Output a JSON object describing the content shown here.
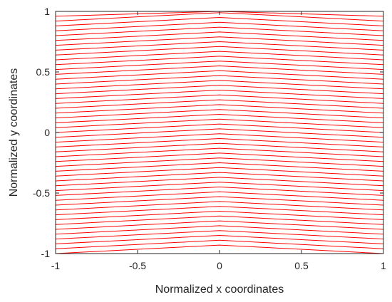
{
  "chart_data": {
    "type": "line",
    "title": "",
    "xlabel": "Normalized x coordinates",
    "ylabel": "Normalized y coordinates",
    "xlim": [
      -1,
      1
    ],
    "ylim": [
      -1,
      1
    ],
    "xticks": [
      -1,
      -0.5,
      0,
      0.5,
      1
    ],
    "yticks": [
      -1,
      -0.5,
      0,
      0.5,
      1
    ],
    "xtick_labels": [
      "-1",
      "-0.5",
      "0",
      "0.5",
      "1"
    ],
    "ytick_labels": [
      "-1",
      "-0.5",
      "0",
      "0.5",
      "1"
    ],
    "grid": false,
    "legend": "none",
    "line_color": "#ff0000",
    "series": [
      {
        "x": [
          -1,
          -0.5,
          0,
          0.5,
          1
        ],
        "y": [
          -1,
          -0.965,
          -0.93,
          -0.965,
          -1
        ]
      },
      {
        "x": [
          -1,
          -0.5,
          0,
          0.5,
          1
        ],
        "y": [
          -0.96,
          -0.925,
          -0.89,
          -0.925,
          -0.96
        ]
      },
      {
        "x": [
          -1,
          -0.5,
          0,
          0.5,
          1
        ],
        "y": [
          -0.92,
          -0.885,
          -0.85,
          -0.885,
          -0.92
        ]
      },
      {
        "x": [
          -1,
          -0.5,
          0,
          0.5,
          1
        ],
        "y": [
          -0.88,
          -0.845,
          -0.81,
          -0.845,
          -0.88
        ]
      },
      {
        "x": [
          -1,
          -0.5,
          0,
          0.5,
          1
        ],
        "y": [
          -0.84,
          -0.805,
          -0.77,
          -0.805,
          -0.84
        ]
      },
      {
        "x": [
          -1,
          -0.5,
          0,
          0.5,
          1
        ],
        "y": [
          -0.8,
          -0.765,
          -0.73,
          -0.765,
          -0.8
        ]
      },
      {
        "x": [
          -1,
          -0.5,
          0,
          0.5,
          1
        ],
        "y": [
          -0.76,
          -0.725,
          -0.69,
          -0.725,
          -0.76
        ]
      },
      {
        "x": [
          -1,
          -0.5,
          0,
          0.5,
          1
        ],
        "y": [
          -0.72,
          -0.685,
          -0.65,
          -0.685,
          -0.72
        ]
      },
      {
        "x": [
          -1,
          -0.5,
          0,
          0.5,
          1
        ],
        "y": [
          -0.68,
          -0.645,
          -0.61,
          -0.645,
          -0.68
        ]
      },
      {
        "x": [
          -1,
          -0.5,
          0,
          0.5,
          1
        ],
        "y": [
          -0.64,
          -0.605,
          -0.57,
          -0.605,
          -0.64
        ]
      },
      {
        "x": [
          -1,
          -0.5,
          0,
          0.5,
          1
        ],
        "y": [
          -0.6,
          -0.565,
          -0.53,
          -0.565,
          -0.6
        ]
      },
      {
        "x": [
          -1,
          -0.5,
          0,
          0.5,
          1
        ],
        "y": [
          -0.56,
          -0.525,
          -0.49,
          -0.525,
          -0.56
        ]
      },
      {
        "x": [
          -1,
          -0.5,
          0,
          0.5,
          1
        ],
        "y": [
          -0.52,
          -0.485,
          -0.45,
          -0.485,
          -0.52
        ]
      },
      {
        "x": [
          -1,
          -0.5,
          0,
          0.5,
          1
        ],
        "y": [
          -0.48,
          -0.445,
          -0.41,
          -0.445,
          -0.48
        ]
      },
      {
        "x": [
          -1,
          -0.5,
          0,
          0.5,
          1
        ],
        "y": [
          -0.44,
          -0.405,
          -0.37,
          -0.405,
          -0.44
        ]
      },
      {
        "x": [
          -1,
          -0.5,
          0,
          0.5,
          1
        ],
        "y": [
          -0.4,
          -0.365,
          -0.33,
          -0.365,
          -0.4
        ]
      },
      {
        "x": [
          -1,
          -0.5,
          0,
          0.5,
          1
        ],
        "y": [
          -0.36,
          -0.325,
          -0.29,
          -0.325,
          -0.36
        ]
      },
      {
        "x": [
          -1,
          -0.5,
          0,
          0.5,
          1
        ],
        "y": [
          -0.32,
          -0.285,
          -0.25,
          -0.285,
          -0.32
        ]
      },
      {
        "x": [
          -1,
          -0.5,
          0,
          0.5,
          1
        ],
        "y": [
          -0.28,
          -0.245,
          -0.21,
          -0.245,
          -0.28
        ]
      },
      {
        "x": [
          -1,
          -0.5,
          0,
          0.5,
          1
        ],
        "y": [
          -0.24,
          -0.205,
          -0.17,
          -0.205,
          -0.24
        ]
      },
      {
        "x": [
          -1,
          -0.5,
          0,
          0.5,
          1
        ],
        "y": [
          -0.2,
          -0.165,
          -0.13,
          -0.165,
          -0.2
        ]
      },
      {
        "x": [
          -1,
          -0.5,
          0,
          0.5,
          1
        ],
        "y": [
          -0.16,
          -0.125,
          -0.09,
          -0.125,
          -0.16
        ]
      },
      {
        "x": [
          -1,
          -0.5,
          0,
          0.5,
          1
        ],
        "y": [
          -0.12,
          -0.085,
          -0.05,
          -0.085,
          -0.12
        ]
      },
      {
        "x": [
          -1,
          -0.5,
          0,
          0.5,
          1
        ],
        "y": [
          -0.08,
          -0.045,
          -0.01,
          -0.045,
          -0.08
        ]
      },
      {
        "x": [
          -1,
          -0.5,
          0,
          0.5,
          1
        ],
        "y": [
          -0.04,
          -0.005,
          0.03,
          -0.005,
          -0.04
        ]
      },
      {
        "x": [
          -1,
          -0.5,
          0,
          0.5,
          1
        ],
        "y": [
          0,
          0.035,
          0.07,
          0.035,
          0
        ]
      },
      {
        "x": [
          -1,
          -0.5,
          0,
          0.5,
          1
        ],
        "y": [
          0.04,
          0.075,
          0.11,
          0.075,
          0.04
        ]
      },
      {
        "x": [
          -1,
          -0.5,
          0,
          0.5,
          1
        ],
        "y": [
          0.08,
          0.115,
          0.15,
          0.115,
          0.08
        ]
      },
      {
        "x": [
          -1,
          -0.5,
          0,
          0.5,
          1
        ],
        "y": [
          0.12,
          0.155,
          0.19,
          0.155,
          0.12
        ]
      },
      {
        "x": [
          -1,
          -0.5,
          0,
          0.5,
          1
        ],
        "y": [
          0.16,
          0.195,
          0.23,
          0.195,
          0.16
        ]
      },
      {
        "x": [
          -1,
          -0.5,
          0,
          0.5,
          1
        ],
        "y": [
          0.2,
          0.235,
          0.27,
          0.235,
          0.2
        ]
      },
      {
        "x": [
          -1,
          -0.5,
          0,
          0.5,
          1
        ],
        "y": [
          0.24,
          0.275,
          0.31,
          0.275,
          0.24
        ]
      },
      {
        "x": [
          -1,
          -0.5,
          0,
          0.5,
          1
        ],
        "y": [
          0.28,
          0.315,
          0.35,
          0.315,
          0.28
        ]
      },
      {
        "x": [
          -1,
          -0.5,
          0,
          0.5,
          1
        ],
        "y": [
          0.32,
          0.355,
          0.39,
          0.355,
          0.32
        ]
      },
      {
        "x": [
          -1,
          -0.5,
          0,
          0.5,
          1
        ],
        "y": [
          0.36,
          0.395,
          0.43,
          0.395,
          0.36
        ]
      },
      {
        "x": [
          -1,
          -0.5,
          0,
          0.5,
          1
        ],
        "y": [
          0.4,
          0.435,
          0.47,
          0.435,
          0.4
        ]
      },
      {
        "x": [
          -1,
          -0.5,
          0,
          0.5,
          1
        ],
        "y": [
          0.44,
          0.475,
          0.51,
          0.475,
          0.44
        ]
      },
      {
        "x": [
          -1,
          -0.5,
          0,
          0.5,
          1
        ],
        "y": [
          0.48,
          0.515,
          0.55,
          0.515,
          0.48
        ]
      },
      {
        "x": [
          -1,
          -0.5,
          0,
          0.5,
          1
        ],
        "y": [
          0.52,
          0.555,
          0.59,
          0.555,
          0.52
        ]
      },
      {
        "x": [
          -1,
          -0.5,
          0,
          0.5,
          1
        ],
        "y": [
          0.56,
          0.595,
          0.63,
          0.595,
          0.56
        ]
      },
      {
        "x": [
          -1,
          -0.5,
          0,
          0.5,
          1
        ],
        "y": [
          0.6,
          0.635,
          0.67,
          0.635,
          0.6
        ]
      },
      {
        "x": [
          -1,
          -0.5,
          0,
          0.5,
          1
        ],
        "y": [
          0.64,
          0.675,
          0.71,
          0.675,
          0.64
        ]
      },
      {
        "x": [
          -1,
          -0.5,
          0,
          0.5,
          1
        ],
        "y": [
          0.68,
          0.715,
          0.75,
          0.715,
          0.68
        ]
      },
      {
        "x": [
          -1,
          -0.5,
          0,
          0.5,
          1
        ],
        "y": [
          0.72,
          0.755,
          0.79,
          0.755,
          0.72
        ]
      },
      {
        "x": [
          -1,
          -0.5,
          0,
          0.5,
          1
        ],
        "y": [
          0.76,
          0.795,
          0.83,
          0.795,
          0.76
        ]
      },
      {
        "x": [
          -1,
          -0.5,
          0,
          0.5,
          1
        ],
        "y": [
          0.8,
          0.835,
          0.87,
          0.835,
          0.8
        ]
      },
      {
        "x": [
          -1,
          -0.5,
          0,
          0.5,
          1
        ],
        "y": [
          0.84,
          0.875,
          0.91,
          0.875,
          0.84
        ]
      },
      {
        "x": [
          -1,
          -0.5,
          0,
          0.5,
          1
        ],
        "y": [
          0.88,
          0.915,
          0.95,
          0.915,
          0.88
        ]
      },
      {
        "x": [
          -1,
          -0.5,
          0,
          0.5,
          1
        ],
        "y": [
          0.92,
          0.955,
          0.99,
          0.955,
          0.92
        ]
      },
      {
        "x": [
          -1,
          -0.5,
          0,
          0.5,
          1
        ],
        "y": [
          0.96,
          0.98,
          1,
          0.98,
          0.96
        ]
      },
      {
        "x": [
          -1,
          -0.5,
          0,
          0.5,
          1
        ],
        "y": [
          1,
          1,
          1,
          1,
          1
        ]
      }
    ]
  }
}
